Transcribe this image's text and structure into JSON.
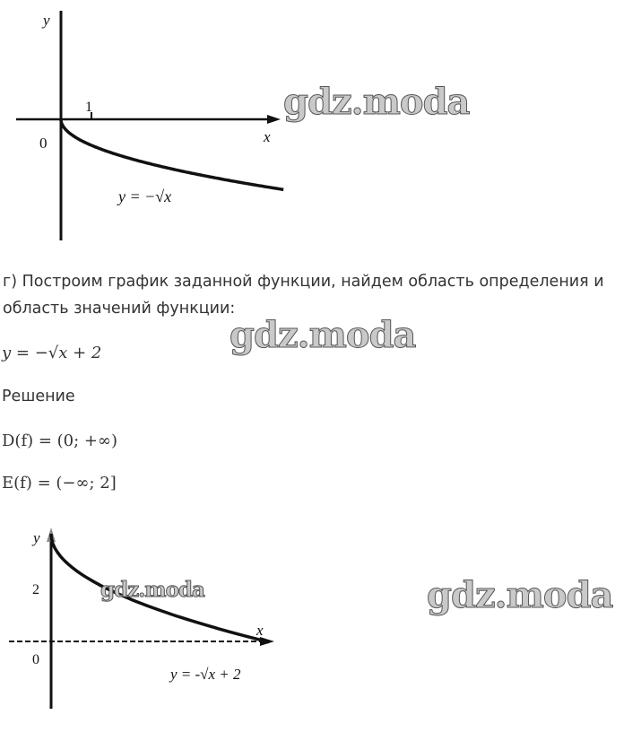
{
  "graph1": {
    "y_label": "y",
    "x_label": "x",
    "origin_label": "0",
    "tick_label": "1",
    "curve_label": "y = −√x"
  },
  "task": {
    "line1": "г) Построим график заданной функции, найдем область определения и",
    "line2": "область значений функции:"
  },
  "formula": "y = −√x + 2",
  "solution_label": "Решение",
  "domain": "D(f) = (0; +∞)",
  "range": "E(f) = (−∞; 2]",
  "graph2": {
    "y_label": "y",
    "x_label": "x",
    "origin_label": "0",
    "y_tick_label": "2",
    "curve_label": "y = -√x + 2"
  },
  "watermark": "gdz.moda"
}
